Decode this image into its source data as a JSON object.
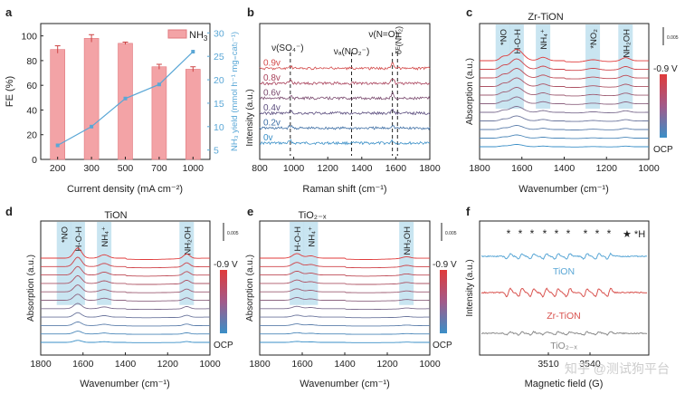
{
  "colors": {
    "bar": "#f3a3a6",
    "barEdge": "#e27a7f",
    "line": "#5aa7d6",
    "hot": "#d93a3a",
    "cold": "#2f6fa8",
    "band": "#bfe1ef",
    "grey": "#888888"
  },
  "chart_data": [
    {
      "panel": "a",
      "type": "bar",
      "categories": [
        "200",
        "300",
        "500",
        "700",
        "1000"
      ],
      "series": [
        {
          "name": "NH3",
          "legend_main": "NH",
          "legend_sub": "3",
          "values": [
            89,
            98,
            94,
            75,
            73
          ],
          "errors": [
            3,
            3,
            1,
            2,
            2
          ]
        },
        {
          "name": "NH3 yield",
          "type": "line",
          "values": [
            6,
            10,
            16,
            19,
            26
          ]
        }
      ],
      "xlabel": "Current density (mA cm⁻²)",
      "ylabel": "FE (%)",
      "ylabel2": "NH₃ yield (mmol h⁻¹ mg₌cat₎⁻¹)",
      "yticks": [
        "0",
        "20",
        "40",
        "60",
        "80",
        "100"
      ],
      "y2ticks": [
        "5",
        "10",
        "15",
        "20",
        "25",
        "30"
      ],
      "ylim": [
        0,
        110
      ],
      "y2lim": [
        3,
        32
      ]
    },
    {
      "panel": "b",
      "type": "line",
      "title": "",
      "xlabel": "Raman shift (cm⁻¹)",
      "ylabel": "Intensity (a.u.)",
      "xticks": [
        "800",
        "1000",
        "1200",
        "1400",
        "1600",
        "1800"
      ],
      "xlim": [
        800,
        1800
      ],
      "series": [
        {
          "name": "0v",
          "label": "0v"
        },
        {
          "name": "0.2v",
          "label": "0.2v"
        },
        {
          "name": "0.4v",
          "label": "0.4v"
        },
        {
          "name": "0.6v",
          "label": "0.6v"
        },
        {
          "name": "0.8v",
          "label": "0.8v"
        },
        {
          "name": "0.9v",
          "label": "0.9v"
        }
      ],
      "markers": [
        {
          "x": 980,
          "label": "ν(SO₄⁻)"
        },
        {
          "x": 1340,
          "label": "νₐ(NO₂⁻)"
        },
        {
          "x": 1580,
          "label": "ν(N=O)"
        },
        {
          "x": 1610,
          "label": "δᴱ(NH₂)"
        }
      ]
    },
    {
      "panel": "c",
      "type": "line",
      "title": "Zr-TiON",
      "xlabel": "Wavenumber (cm⁻¹)",
      "ylabel": "Absorption (a.u.)",
      "xticks": [
        "1800",
        "1600",
        "1400",
        "1200",
        "1000"
      ],
      "xlim": [
        1800,
        1000
      ],
      "scale": "0.005",
      "cbar_top": "-0.9 V",
      "cbar_bottom": "OCP",
      "bands": [
        {
          "x": 1690,
          "label": "*NO"
        },
        {
          "x": 1625,
          "label": "H-O-H"
        },
        {
          "x": 1500,
          "label": "NH₄⁺"
        },
        {
          "x": 1265,
          "label": "*NO₂"
        },
        {
          "x": 1110,
          "label": "NH₂OH"
        }
      ]
    },
    {
      "panel": "d",
      "type": "line",
      "title": "TiON",
      "xlabel": "Wavenumber (cm⁻¹)",
      "ylabel": "Absorption (a.u.)",
      "xticks": [
        "1800",
        "1600",
        "1400",
        "1200",
        "1000"
      ],
      "xlim": [
        1800,
        1000
      ],
      "scale": "0.005",
      "cbar_top": "-0.9 V",
      "cbar_bottom": "OCP",
      "bands": [
        {
          "x": 1690,
          "label": "*NO"
        },
        {
          "x": 1625,
          "label": "H-O-H"
        },
        {
          "x": 1500,
          "label": "NH₄⁺"
        },
        {
          "x": 1110,
          "label": "NH₂OH"
        }
      ]
    },
    {
      "panel": "e",
      "type": "line",
      "title": "TiO₂₋ₓ",
      "xlabel": "Wavenumber (cm⁻¹)",
      "ylabel": "Absorption (a.u.)",
      "xticks": [
        "1800",
        "1600",
        "1400",
        "1200",
        "1000"
      ],
      "xlim": [
        1800,
        1000
      ],
      "scale": "0.005",
      "cbar_top": "-0.9 V",
      "cbar_bottom": "OCP",
      "bands": [
        {
          "x": 1625,
          "label": "H-O-H"
        },
        {
          "x": 1560,
          "label": "NH₄⁺"
        },
        {
          "x": 1110,
          "label": "NH₂OH"
        }
      ]
    },
    {
      "panel": "f",
      "type": "line",
      "title": "",
      "xlabel": "Magnetic field (G)",
      "ylabel": "Intensity (a.u.)",
      "xticks": [
        "3510",
        "3540"
      ],
      "legend": "★ *H",
      "series": [
        {
          "name": "TiON",
          "label": "TiON"
        },
        {
          "name": "Zr-TiON",
          "label": "Zr-TiON"
        },
        {
          "name": "TiO2-x",
          "label": "TiO₂₋ₓ"
        }
      ],
      "stars": [
        "*",
        "*",
        "*",
        "*",
        "*",
        "*",
        "*",
        "*",
        "*"
      ]
    }
  ],
  "watermark": "知乎 @测试狗平台"
}
